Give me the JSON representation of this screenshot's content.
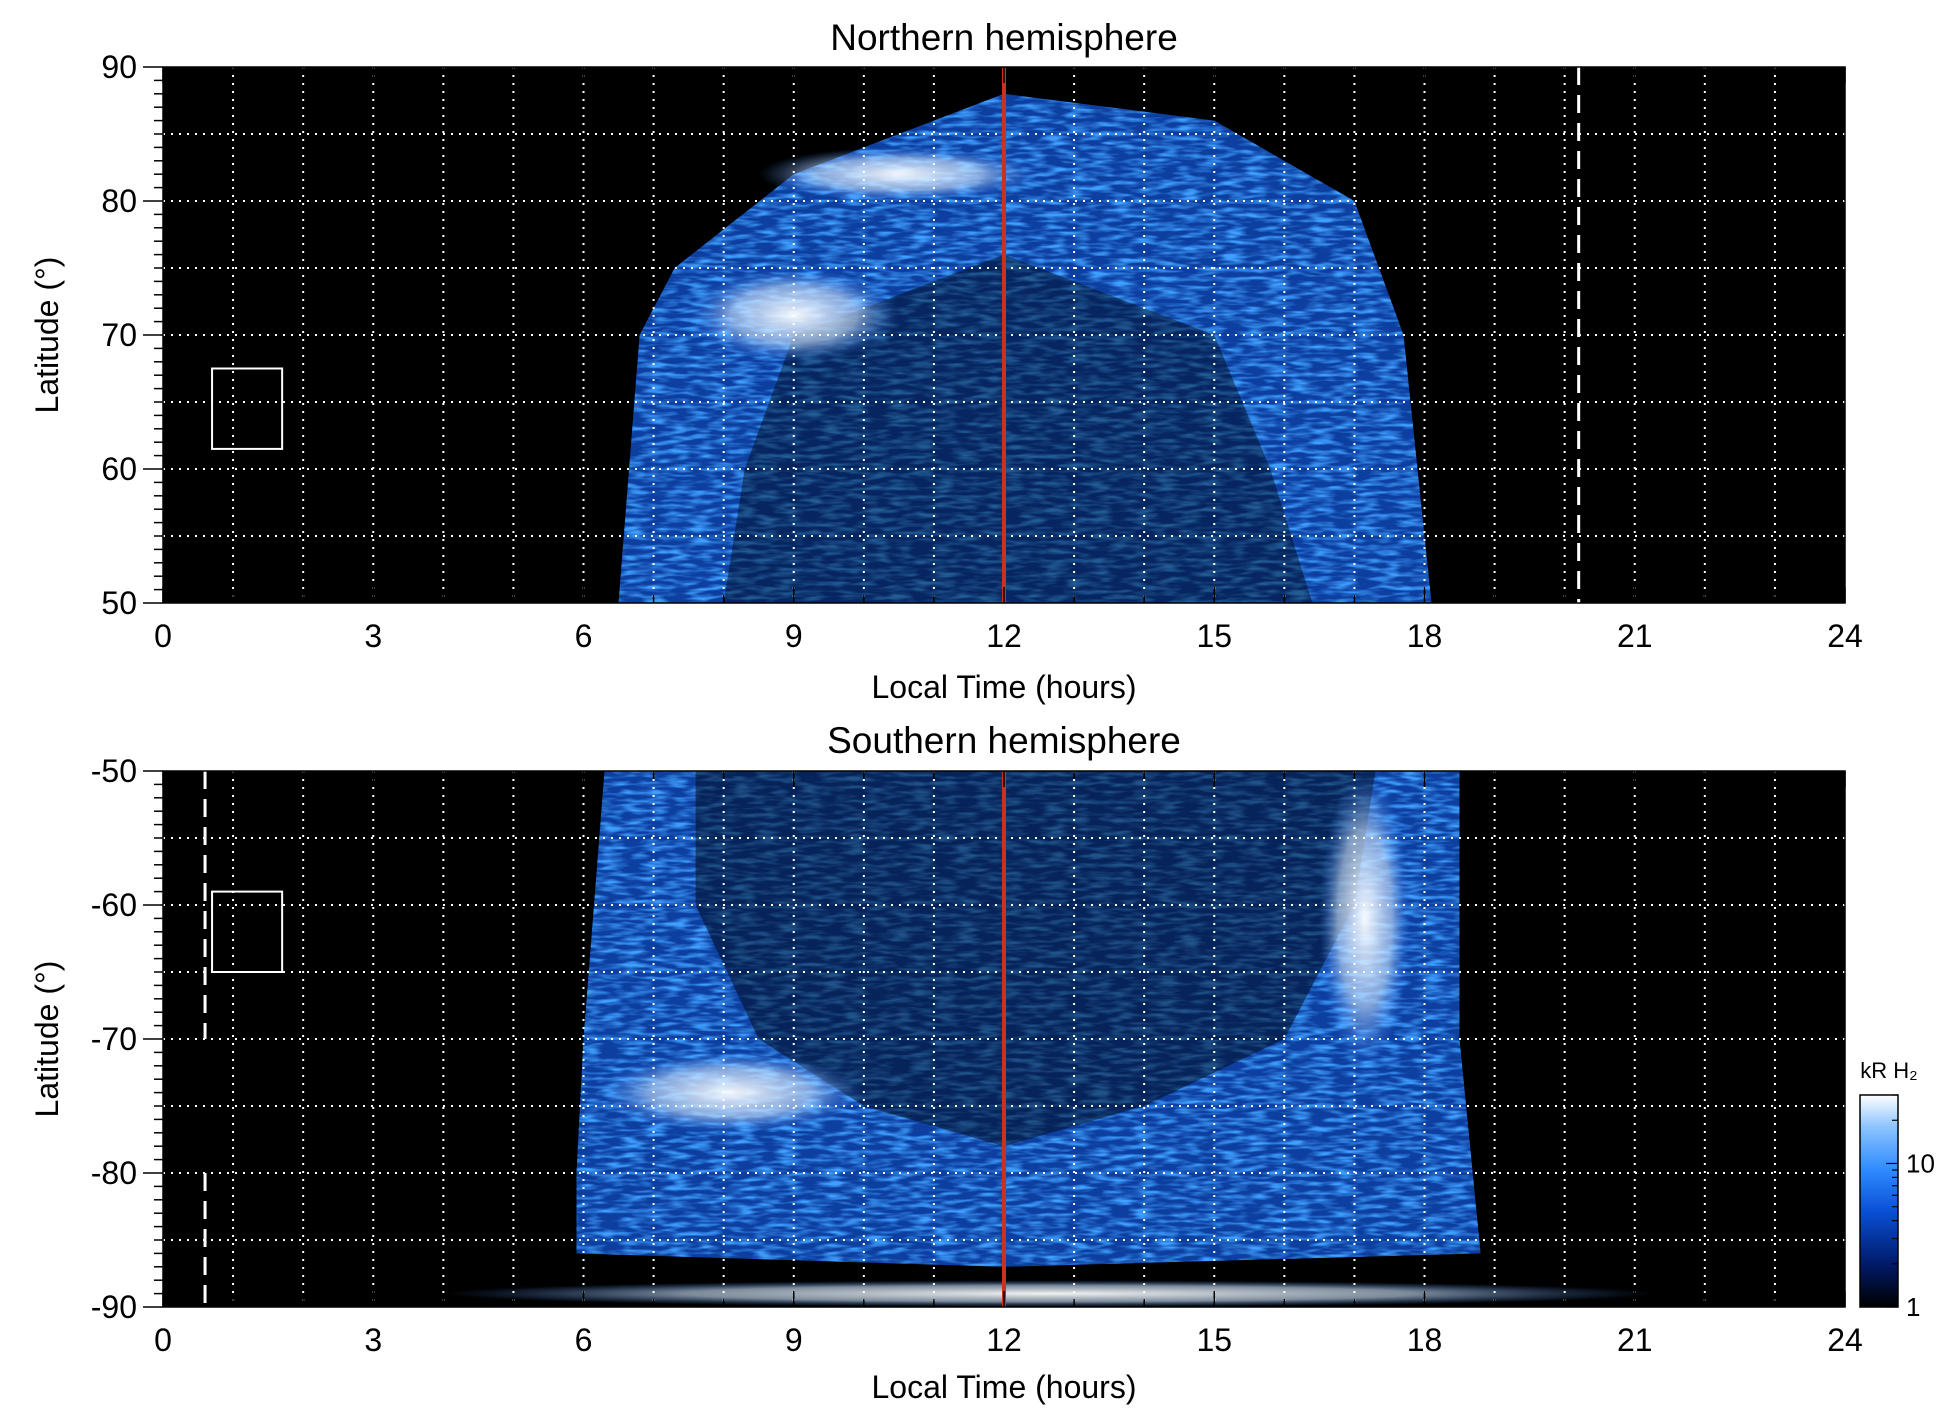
{
  "chart_data": [
    {
      "type": "heatmap",
      "title": "Northern hemisphere",
      "xlabel": "Local Time (hours)",
      "ylabel": "Latitude (°)",
      "xlim": [
        0,
        24
      ],
      "ylim": [
        50,
        90
      ],
      "xticks": [
        "0",
        "3",
        "6",
        "9",
        "12",
        "15",
        "18",
        "21",
        "24"
      ],
      "yticks": [
        "50",
        "60",
        "70",
        "80",
        "90"
      ],
      "grid": true,
      "noon_line_lt": 12,
      "dashed_line_lt": 20.2,
      "dashed_line_lat_range": [
        50,
        90
      ],
      "box": {
        "lt": [
          0.7,
          1.7
        ],
        "lat": [
          61.5,
          67.5
        ]
      },
      "emission_region": {
        "outer_edge": [
          [
            6.5,
            50
          ],
          [
            6.8,
            70
          ],
          [
            7.3,
            75
          ],
          [
            9,
            82
          ],
          [
            12,
            88
          ],
          [
            15,
            86
          ],
          [
            17,
            80
          ],
          [
            17.7,
            70
          ],
          [
            18.1,
            50
          ]
        ],
        "inner_edge": [
          [
            8,
            50
          ],
          [
            8.3,
            60
          ],
          [
            9,
            70
          ],
          [
            11,
            74
          ],
          [
            12,
            76
          ],
          [
            13,
            74
          ],
          [
            15,
            70
          ],
          [
            15.8,
            60
          ],
          [
            16.4,
            50
          ]
        ],
        "bright_features": [
          {
            "label": "morning arc",
            "lt": [
              7.5,
              10.5
            ],
            "lat": [
              68,
              75
            ]
          },
          {
            "label": "upper arc",
            "lt": [
              8.5,
              12.5
            ],
            "lat": [
              80,
              84
            ]
          }
        ]
      }
    },
    {
      "type": "heatmap",
      "title": "Southern hemisphere",
      "xlabel": "Local Time (hours)",
      "ylabel": "Latitude (°)",
      "xlim": [
        0,
        24
      ],
      "ylim": [
        -90,
        -50
      ],
      "xticks": [
        "0",
        "3",
        "6",
        "9",
        "12",
        "15",
        "18",
        "21",
        "24"
      ],
      "yticks": [
        "-90",
        "-80",
        "-70",
        "-60",
        "-50"
      ],
      "grid": true,
      "noon_line_lt": 12,
      "dashed_line_lt": 0.6,
      "dashed_line_lat_ranges": [
        [
          -70,
          -50
        ],
        [
          -90,
          -80
        ]
      ],
      "box": {
        "lt": [
          0.7,
          1.7
        ],
        "lat": [
          -65,
          -59
        ]
      },
      "emission_region": {
        "outer_edge": [
          [
            6.3,
            -50
          ],
          [
            6,
            -70
          ],
          [
            5.9,
            -80
          ],
          [
            5.9,
            -86
          ],
          [
            12,
            -87
          ],
          [
            18.8,
            -86
          ],
          [
            18.5,
            -70
          ],
          [
            18.5,
            -50
          ]
        ],
        "inner_edge": [
          [
            7.6,
            -50
          ],
          [
            7.6,
            -60
          ],
          [
            8.5,
            -70
          ],
          [
            10,
            -75
          ],
          [
            12,
            -78
          ],
          [
            14,
            -75
          ],
          [
            16,
            -70
          ],
          [
            17,
            -60
          ],
          [
            17.3,
            -50
          ]
        ],
        "bright_features": [
          {
            "label": "dawn arc",
            "lt": [
              6.2,
              10
            ],
            "lat": [
              -77,
              -71
            ]
          },
          {
            "label": "dusk arc",
            "lt": [
              16.5,
              17.8
            ],
            "lat": [
              -72,
              -50
            ]
          },
          {
            "label": "polar streak",
            "lt": [
              4,
              21.3
            ],
            "lat": [
              -90,
              -88
            ]
          }
        ]
      }
    }
  ],
  "colorbar": {
    "label": "kR H₂",
    "tick_labels": [
      "1",
      "10"
    ],
    "scale": "log",
    "range": [
      1,
      30
    ],
    "colors": [
      "#000000",
      "#001a66",
      "#0a4fd6",
      "#2f8cff",
      "#8cc4ff",
      "#ffffff"
    ]
  },
  "colors": {
    "noon_line": "#c8321e",
    "grid": "#ffffff",
    "background": "#000000"
  }
}
